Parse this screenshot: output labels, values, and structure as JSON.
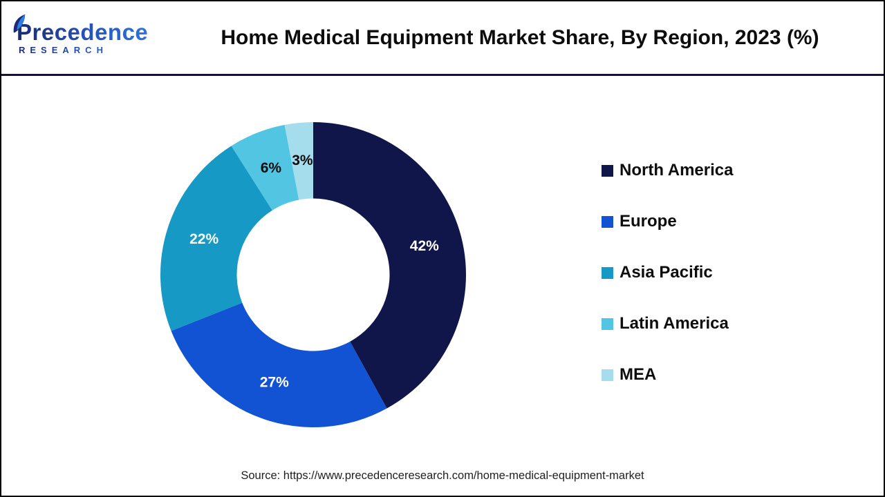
{
  "header": {
    "logo": {
      "line1": "Precedence",
      "line2": "RESEARCH"
    },
    "title": "Home Medical Equipment Market Share, By Region, 2023 (%)"
  },
  "chart_data": {
    "type": "pie",
    "subtype": "donut",
    "title": "Home Medical Equipment Market Share, By Region, 2023 (%)",
    "start_angle_deg": 0,
    "direction": "clockwise",
    "value_suffix": "%",
    "legend_position": "right",
    "slices": [
      {
        "label": "North America",
        "value": 42,
        "color": "#101649",
        "label_color": "#ffffff"
      },
      {
        "label": "Europe",
        "value": 27,
        "color": "#1253d3",
        "label_color": "#ffffff"
      },
      {
        "label": "Asia Pacific",
        "value": 22,
        "color": "#1699c5",
        "label_color": "#ffffff"
      },
      {
        "label": "Latin America",
        "value": 6,
        "color": "#52c5e2",
        "label_color": "#0d0d0d"
      },
      {
        "label": "MEA",
        "value": 3,
        "color": "#a5ddec",
        "label_color": "#0d0d0d"
      }
    ]
  },
  "footer": {
    "source": "Source: https://www.precedenceresearch.com/home-medical-equipment-market"
  }
}
